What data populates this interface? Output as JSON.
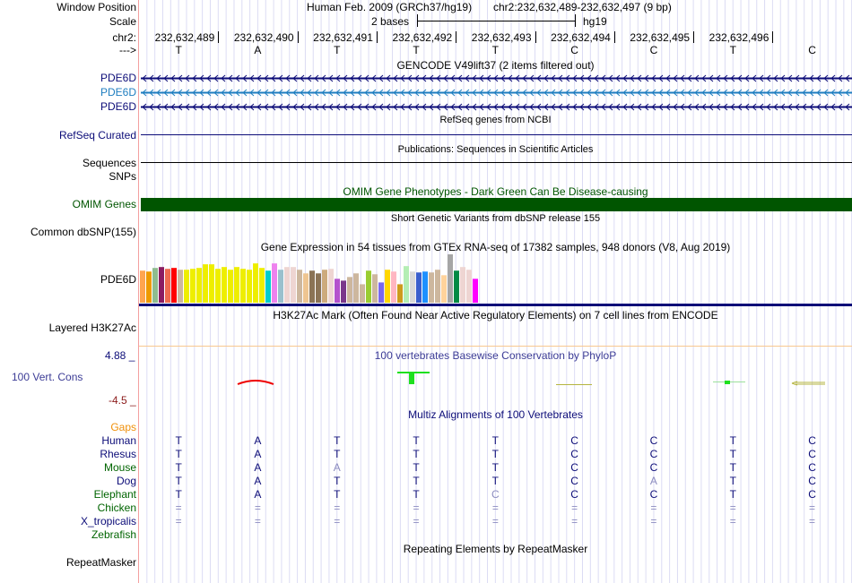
{
  "header": {
    "window_position_label": "Window Position",
    "assembly_title": "Human Feb. 2009 (GRCh37/hg19)",
    "position": "chr2:232,632,489-232,632,497 (9 bp)",
    "scale_label": "Scale",
    "scale_text": "2 bases",
    "scale_db": "hg19",
    "chrom_label": "chr2:",
    "coordinates": [
      "232,632,489",
      "232,632,490",
      "232,632,491",
      "232,632,492",
      "232,632,493",
      "232,632,494",
      "232,632,495",
      "232,632,496"
    ],
    "strand_label": "--->",
    "bases": [
      "T",
      "A",
      "T",
      "T",
      "T",
      "C",
      "C",
      "T",
      "C"
    ]
  },
  "tracks": {
    "gencode": {
      "title": "GENCODE V49lift37 (2 items filtered out)",
      "items": [
        {
          "label": "PDE6D",
          "color": "#0c0c78"
        },
        {
          "label": "PDE6D",
          "color": "#1f7ec0"
        },
        {
          "label": "PDE6D",
          "color": "#0c0c78"
        }
      ]
    },
    "refseq": {
      "title": "RefSeq genes from NCBI",
      "label": "RefSeq Curated"
    },
    "publications": {
      "title": "Publications: Sequences in Scientific Articles",
      "label": "Sequences"
    },
    "snps": {
      "label": "SNPs"
    },
    "omim": {
      "title": "OMIM Gene Phenotypes - Dark Green Can Be Disease-causing",
      "label": "OMIM Genes",
      "color": "#005500"
    },
    "dbsnp": {
      "title": "Short Genetic Variants from dbSNP release 155",
      "label": "Common dbSNP(155)"
    },
    "gtex": {
      "title": "Gene Expression in 54 tissues from GTEx RNA-seq of 17382 samples, 948 donors (V8, Aug 2019)",
      "label": "PDE6D"
    },
    "h3k27ac": {
      "title": "H3K27Ac Mark (Often Found Near Active Regulatory Elements) on 7 cell lines from ENCODE",
      "label": "Layered H3K27Ac"
    },
    "phylop": {
      "title": "100 vertebrates Basewise Conservation by PhyloP",
      "label": "100 Vert. Cons",
      "max_label": "4.88 _",
      "min_label": "-4.5 _"
    },
    "multiz": {
      "title": "Multiz Alignments of 100 Vertebrates",
      "gaps_label": "Gaps",
      "species": [
        {
          "name": "Human",
          "color": "#0c0c78",
          "bases": [
            "T",
            "A",
            "T",
            "T",
            "T",
            "C",
            "C",
            "T",
            "C"
          ],
          "faded": []
        },
        {
          "name": "Rhesus",
          "color": "#0c0c78",
          "bases": [
            "T",
            "A",
            "T",
            "T",
            "T",
            "C",
            "C",
            "T",
            "C"
          ],
          "faded": []
        },
        {
          "name": "Mouse",
          "color": "#006400",
          "bases": [
            "T",
            "A",
            "A",
            "T",
            "T",
            "C",
            "C",
            "T",
            "C"
          ],
          "faded": [
            2
          ]
        },
        {
          "name": "Dog",
          "color": "#0c0c78",
          "bases": [
            "T",
            "A",
            "T",
            "T",
            "T",
            "C",
            "A",
            "T",
            "C"
          ],
          "faded": [
            6
          ]
        },
        {
          "name": "Elephant",
          "color": "#006400",
          "bases": [
            "T",
            "A",
            "T",
            "T",
            "C",
            "C",
            "C",
            "T",
            "C"
          ],
          "faded": [
            4
          ]
        },
        {
          "name": "Chicken",
          "color": "#006400",
          "bases": [
            "=",
            "=",
            "=",
            "=",
            "=",
            "=",
            "=",
            "=",
            "="
          ],
          "faded": [
            0,
            1,
            2,
            3,
            4,
            5,
            6,
            7,
            8
          ]
        },
        {
          "name": "X_tropicalis",
          "color": "#0c0c78",
          "bases": [
            "=",
            "=",
            "=",
            "=",
            "=",
            "=",
            "=",
            "=",
            "="
          ],
          "faded": [
            0,
            1,
            2,
            3,
            4,
            5,
            6,
            7,
            8
          ]
        },
        {
          "name": "Zebrafish",
          "color": "#006400",
          "bases": [],
          "faded": []
        }
      ]
    },
    "repeatmasker": {
      "title": "Repeating Elements by RepeatMasker",
      "label": "RepeatMasker"
    }
  },
  "chart_data": {
    "type": "bar",
    "title": "Gene Expression in 54 tissues from GTEx RNA-seq of 17382 samples, 948 donors (V8, Aug 2019)",
    "note": "relative expression levels (unitless, max = 160)",
    "values": [
      106,
      103,
      115,
      118,
      112,
      115,
      109,
      109,
      112,
      115,
      127,
      127,
      112,
      118,
      109,
      118,
      112,
      109,
      130,
      115,
      106,
      130,
      109,
      118,
      118,
      109,
      97,
      106,
      97,
      109,
      112,
      79,
      73,
      85,
      97,
      61,
      106,
      94,
      67,
      109,
      103,
      61,
      121,
      103,
      100,
      103,
      100,
      109,
      91,
      160,
      106,
      118,
      109,
      79
    ],
    "colors": [
      "#FFA54F",
      "#EE9A00",
      "#8FBC8F",
      "#8B1C62",
      "#EE6A50",
      "#FF0000",
      "#CDB79E",
      "#EEEE00",
      "#EEEE00",
      "#EEEE00",
      "#EEEE00",
      "#EEEE00",
      "#EEEE00",
      "#EEEE00",
      "#EEEE00",
      "#EEEE00",
      "#EEEE00",
      "#EEEE00",
      "#EEEE00",
      "#EEEE00",
      "#00CDCD",
      "#EE82EE",
      "#9AC0CD",
      "#EED5D2",
      "#EED5D2",
      "#CDB79E",
      "#EEC591",
      "#8B7355",
      "#8B7355",
      "#CDAA7D",
      "#EED5D2",
      "#B452CD",
      "#7A378B",
      "#CDB79E",
      "#CDB79E",
      "#CDB79E",
      "#9ACD32",
      "#CDB79E",
      "#7A67EE",
      "#FFD700",
      "#FFB6C1",
      "#CD9B1D",
      "#B4EEB4",
      "#D9D9D9",
      "#3A5FCD",
      "#1E90FF",
      "#CDB79E",
      "#CDB79E",
      "#FFD39B",
      "#A6A6A6",
      "#008B45",
      "#EED5D2",
      "#EED5D2",
      "#FF00FF"
    ]
  }
}
